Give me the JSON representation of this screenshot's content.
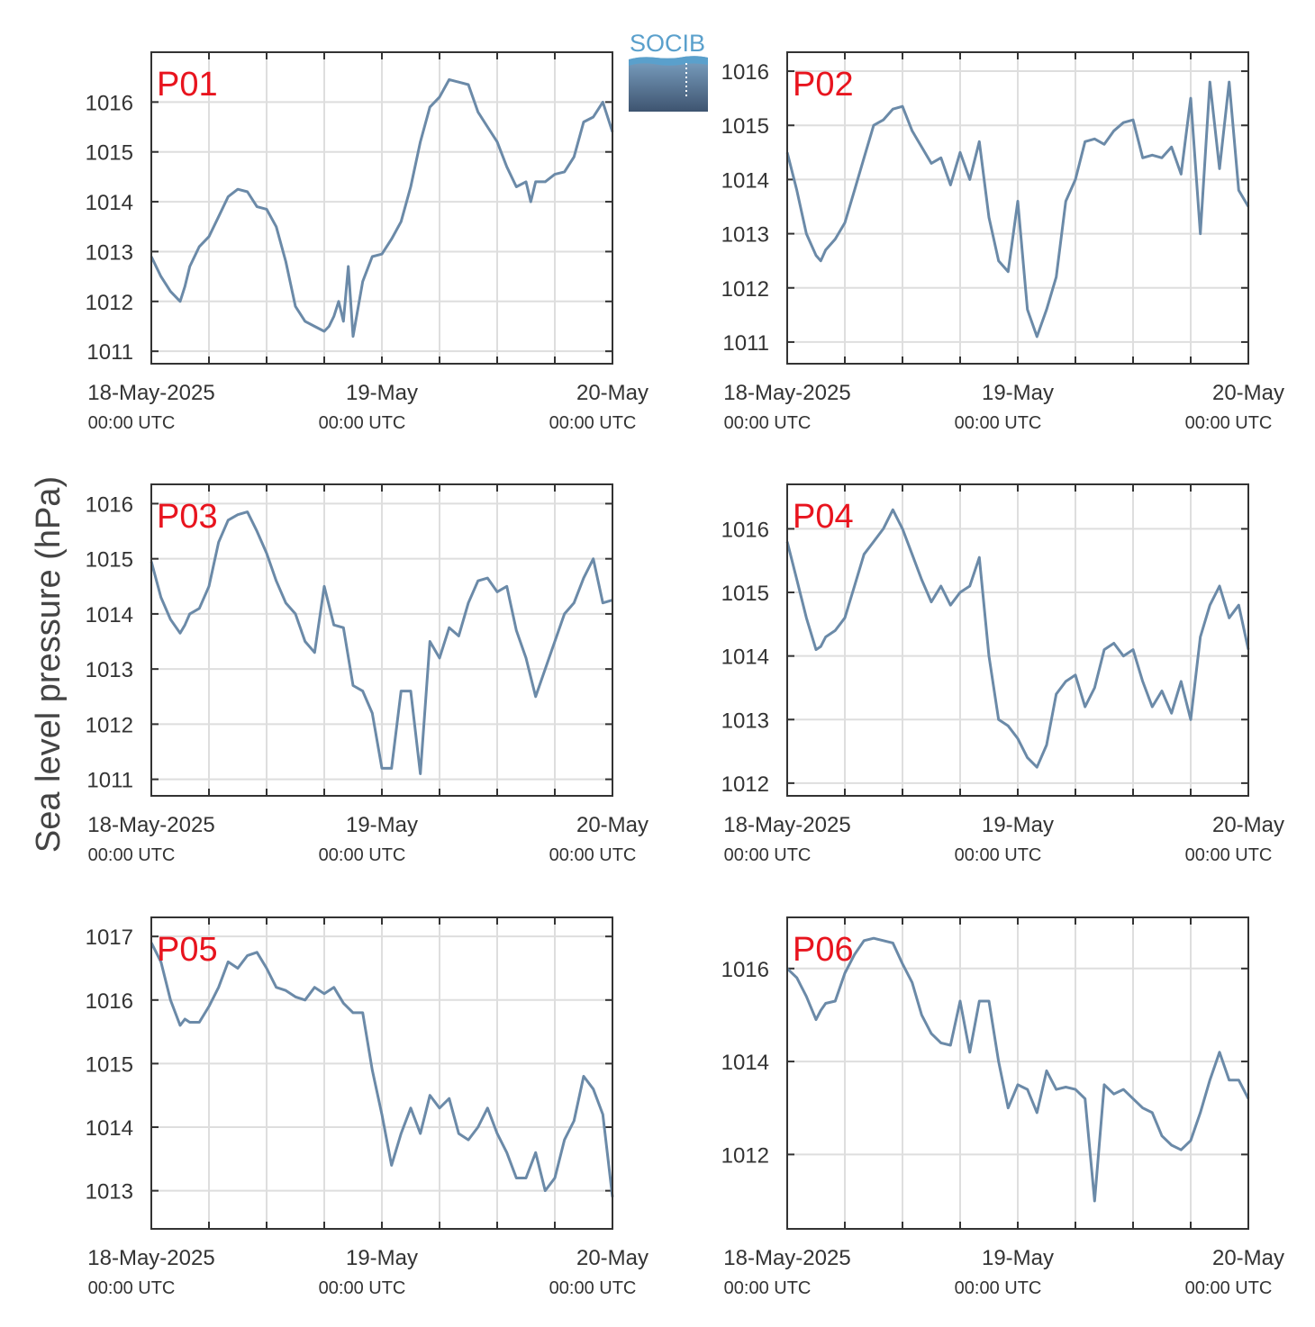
{
  "ylabel": "Sea level pressure (hPa)",
  "logo": {
    "text": "SOCIB"
  },
  "colors": {
    "line": "#6b8aa8",
    "label": "#e8141e",
    "grid": "#dedede",
    "axis": "#333333"
  },
  "chart_data": [
    {
      "type": "line",
      "name": "P01",
      "xlabels": [
        [
          "18-May-2025",
          "00:00 UTC"
        ],
        [
          "19-May",
          "00:00 UTC"
        ],
        [
          "20-May",
          "00:00 UTC"
        ]
      ],
      "xlim": [
        0,
        48
      ],
      "ylim": [
        1010.75,
        1017.0
      ],
      "yticks": [
        1011,
        1012,
        1013,
        1014,
        1015,
        1016
      ],
      "x": [
        0,
        1,
        2,
        3,
        3.5,
        4,
        5,
        6,
        7,
        8,
        9,
        10,
        11,
        12,
        13,
        14,
        15,
        16,
        17,
        18,
        18.5,
        19,
        19.5,
        20,
        20.5,
        21,
        22,
        23,
        24,
        25,
        26,
        27,
        28,
        29,
        30,
        31,
        32,
        33,
        34,
        35,
        36,
        37,
        38,
        39,
        39.5,
        40,
        41,
        42,
        43,
        44,
        45,
        46,
        47,
        48
      ],
      "y": [
        1012.9,
        1012.5,
        1012.2,
        1012.0,
        1012.3,
        1012.7,
        1013.1,
        1013.3,
        1013.7,
        1014.1,
        1014.25,
        1014.2,
        1013.9,
        1013.85,
        1013.5,
        1012.8,
        1011.9,
        1011.6,
        1011.5,
        1011.4,
        1011.5,
        1011.7,
        1012.0,
        1011.6,
        1012.7,
        1011.3,
        1012.4,
        1012.9,
        1012.95,
        1013.25,
        1013.6,
        1014.3,
        1015.2,
        1015.9,
        1016.1,
        1016.45,
        1016.4,
        1016.35,
        1015.8,
        1015.5,
        1015.2,
        1014.7,
        1014.3,
        1014.4,
        1014.0,
        1014.4,
        1014.4,
        1014.55,
        1014.6,
        1014.9,
        1015.6,
        1015.7,
        1016.0,
        1015.4
      ]
    },
    {
      "type": "line",
      "name": "P02",
      "xlabels": [
        [
          "18-May-2025",
          "00:00 UTC"
        ],
        [
          "19-May",
          "00:00 UTC"
        ],
        [
          "20-May",
          "00:00 UTC"
        ]
      ],
      "xlim": [
        0,
        48
      ],
      "ylim": [
        1010.6,
        1016.35
      ],
      "yticks": [
        1011,
        1012,
        1013,
        1014,
        1015,
        1016
      ],
      "x": [
        0,
        1,
        2,
        3,
        3.5,
        4,
        5,
        6,
        7,
        8,
        9,
        10,
        11,
        12,
        13,
        14,
        15,
        16,
        17,
        18,
        19,
        20,
        21,
        22,
        23,
        24,
        25,
        26,
        27,
        28,
        29,
        30,
        31,
        32,
        33,
        34,
        35,
        36,
        37,
        38,
        39,
        40,
        41,
        42,
        43,
        44,
        45,
        46,
        47,
        48
      ],
      "y": [
        1014.5,
        1013.8,
        1013.0,
        1012.6,
        1012.5,
        1012.7,
        1012.9,
        1013.2,
        1013.8,
        1014.4,
        1015.0,
        1015.1,
        1015.3,
        1015.35,
        1014.9,
        1014.6,
        1014.3,
        1014.4,
        1013.9,
        1014.5,
        1014.0,
        1014.7,
        1013.3,
        1012.5,
        1012.3,
        1013.6,
        1011.6,
        1011.1,
        1011.6,
        1012.2,
        1013.6,
        1014.0,
        1014.7,
        1014.75,
        1014.65,
        1014.9,
        1015.05,
        1015.1,
        1014.4,
        1014.45,
        1014.4,
        1014.6,
        1014.1,
        1015.5,
        1013.0,
        1015.8,
        1014.2,
        1015.8,
        1013.8,
        1013.5
      ]
    },
    {
      "type": "line",
      "name": "P03",
      "xlabels": [
        [
          "18-May-2025",
          "00:00 UTC"
        ],
        [
          "19-May",
          "00:00 UTC"
        ],
        [
          "20-May",
          "00:00 UTC"
        ]
      ],
      "xlim": [
        0,
        48
      ],
      "ylim": [
        1010.7,
        1016.35
      ],
      "yticks": [
        1011,
        1012,
        1013,
        1014,
        1015,
        1016
      ],
      "x": [
        0,
        1,
        2,
        3,
        3.5,
        4,
        5,
        6,
        7,
        8,
        9,
        10,
        11,
        12,
        13,
        14,
        15,
        16,
        17,
        18,
        19,
        20,
        21,
        22,
        23,
        24,
        25,
        26,
        27,
        28,
        29,
        30,
        31,
        32,
        33,
        34,
        35,
        36,
        37,
        38,
        39,
        40,
        41,
        42,
        43,
        44,
        45,
        46,
        47,
        48
      ],
      "y": [
        1014.95,
        1014.3,
        1013.9,
        1013.65,
        1013.8,
        1014.0,
        1014.1,
        1014.5,
        1015.3,
        1015.7,
        1015.8,
        1015.85,
        1015.5,
        1015.1,
        1014.6,
        1014.2,
        1014.0,
        1013.5,
        1013.3,
        1014.5,
        1013.8,
        1013.75,
        1012.7,
        1012.6,
        1012.2,
        1011.2,
        1011.2,
        1012.6,
        1012.6,
        1011.1,
        1013.5,
        1013.2,
        1013.75,
        1013.6,
        1014.2,
        1014.6,
        1014.65,
        1014.4,
        1014.5,
        1013.7,
        1013.2,
        1012.5,
        1013.0,
        1013.5,
        1014.0,
        1014.2,
        1014.65,
        1015.0,
        1014.2,
        1014.25
      ]
    },
    {
      "type": "line",
      "name": "P04",
      "xlabels": [
        [
          "18-May-2025",
          "00:00 UTC"
        ],
        [
          "19-May",
          "00:00 UTC"
        ],
        [
          "20-May",
          "00:00 UTC"
        ]
      ],
      "xlim": [
        0,
        48
      ],
      "ylim": [
        1011.8,
        1016.7
      ],
      "yticks": [
        1012,
        1013,
        1014,
        1015,
        1016
      ],
      "x": [
        0,
        1,
        2,
        3,
        3.5,
        4,
        5,
        6,
        7,
        8,
        9,
        10,
        11,
        12,
        13,
        14,
        15,
        16,
        17,
        18,
        19,
        20,
        21,
        22,
        23,
        24,
        25,
        26,
        27,
        28,
        29,
        30,
        31,
        32,
        33,
        34,
        35,
        36,
        37,
        38,
        39,
        40,
        41,
        42,
        43,
        44,
        45,
        46,
        47,
        48
      ],
      "y": [
        1015.8,
        1015.2,
        1014.6,
        1014.1,
        1014.15,
        1014.3,
        1014.4,
        1014.6,
        1015.1,
        1015.6,
        1015.8,
        1016.0,
        1016.3,
        1016.0,
        1015.6,
        1015.2,
        1014.85,
        1015.1,
        1014.8,
        1015.0,
        1015.1,
        1015.55,
        1014.0,
        1013.0,
        1012.9,
        1012.7,
        1012.4,
        1012.25,
        1012.6,
        1013.4,
        1013.6,
        1013.7,
        1013.2,
        1013.5,
        1014.1,
        1014.2,
        1014.0,
        1014.1,
        1013.6,
        1013.2,
        1013.45,
        1013.1,
        1013.6,
        1013.0,
        1014.3,
        1014.8,
        1015.1,
        1014.6,
        1014.8,
        1014.1
      ]
    },
    {
      "type": "line",
      "name": "P05",
      "xlabels": [
        [
          "18-May-2025",
          "00:00 UTC"
        ],
        [
          "19-May",
          "00:00 UTC"
        ],
        [
          "20-May",
          "00:00 UTC"
        ]
      ],
      "xlim": [
        0,
        48
      ],
      "ylim": [
        1012.4,
        1017.3
      ],
      "yticks": [
        1013,
        1014,
        1015,
        1016,
        1017
      ],
      "x": [
        0,
        1,
        2,
        3,
        3.5,
        4,
        5,
        6,
        7,
        8,
        9,
        10,
        11,
        12,
        13,
        14,
        15,
        16,
        17,
        18,
        19,
        20,
        21,
        22,
        23,
        24,
        25,
        26,
        27,
        28,
        29,
        30,
        31,
        32,
        33,
        34,
        35,
        36,
        37,
        38,
        39,
        40,
        41,
        42,
        43,
        44,
        45,
        46,
        47,
        48
      ],
      "y": [
        1016.9,
        1016.6,
        1016.0,
        1015.6,
        1015.7,
        1015.65,
        1015.65,
        1015.9,
        1016.2,
        1016.6,
        1016.5,
        1016.7,
        1016.75,
        1016.5,
        1016.2,
        1016.15,
        1016.05,
        1016.0,
        1016.2,
        1016.1,
        1016.2,
        1015.95,
        1015.8,
        1015.8,
        1014.9,
        1014.2,
        1013.4,
        1013.9,
        1014.3,
        1013.9,
        1014.5,
        1014.3,
        1014.45,
        1013.9,
        1013.8,
        1014.0,
        1014.3,
        1013.9,
        1013.6,
        1013.2,
        1013.2,
        1013.6,
        1013.0,
        1013.2,
        1013.8,
        1014.1,
        1014.8,
        1014.6,
        1014.2,
        1012.9
      ]
    },
    {
      "type": "line",
      "name": "P06",
      "xlabels": [
        [
          "18-May-2025",
          "00:00 UTC"
        ],
        [
          "19-May",
          "00:00 UTC"
        ],
        [
          "20-May",
          "00:00 UTC"
        ]
      ],
      "xlim": [
        0,
        48
      ],
      "ylim": [
        1010.4,
        1017.1
      ],
      "yticks": [
        1012,
        1014,
        1016
      ],
      "x": [
        0,
        1,
        2,
        3,
        3.5,
        4,
        5,
        6,
        7,
        8,
        9,
        10,
        11,
        12,
        13,
        14,
        15,
        16,
        17,
        18,
        19,
        20,
        21,
        22,
        23,
        24,
        25,
        26,
        27,
        28,
        29,
        30,
        31,
        32,
        33,
        34,
        35,
        36,
        37,
        38,
        39,
        40,
        41,
        42,
        43,
        44,
        45,
        46,
        47,
        48
      ],
      "y": [
        1016.0,
        1015.8,
        1015.4,
        1014.9,
        1015.1,
        1015.25,
        1015.3,
        1015.9,
        1016.3,
        1016.6,
        1016.65,
        1016.6,
        1016.55,
        1016.1,
        1015.7,
        1015.0,
        1014.6,
        1014.4,
        1014.35,
        1015.3,
        1014.2,
        1015.3,
        1015.3,
        1014.0,
        1013.0,
        1013.5,
        1013.4,
        1012.9,
        1013.8,
        1013.4,
        1013.45,
        1013.4,
        1013.2,
        1011.0,
        1013.5,
        1013.3,
        1013.4,
        1013.2,
        1013.0,
        1012.9,
        1012.4,
        1012.2,
        1012.1,
        1012.3,
        1012.9,
        1013.6,
        1014.2,
        1013.6,
        1013.6,
        1013.2
      ]
    }
  ]
}
